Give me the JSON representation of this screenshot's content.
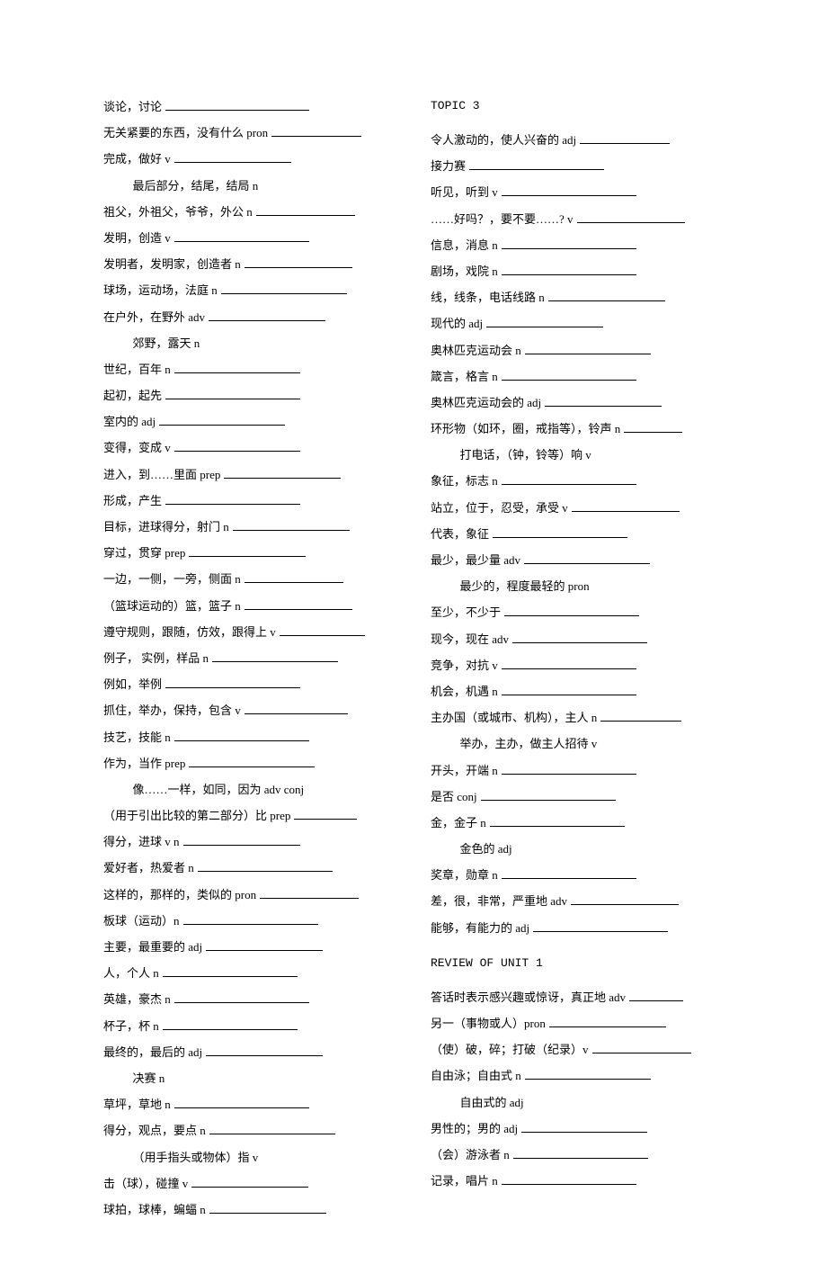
{
  "left": [
    {
      "text": "谈论，讨论",
      "blank": 160,
      "indent": false
    },
    {
      "text": "无关紧要的东西，没有什么 pron",
      "blank": 100,
      "indent": false
    },
    {
      "text": "完成，做好 v",
      "blank": 130,
      "indent": false
    },
    {
      "text": "最后部分，结尾，结局 n",
      "blank": 0,
      "indent": true
    },
    {
      "text": "祖父，外祖父，爷爷，外公 n",
      "blank": 110,
      "indent": false
    },
    {
      "text": "发明，创造 v",
      "blank": 150,
      "indent": false
    },
    {
      "text": "发明者，发明家，创造者 n",
      "blank": 120,
      "indent": false
    },
    {
      "text": "球场，运动场，法庭 n",
      "blank": 140,
      "indent": false
    },
    {
      "text": "在户外，在野外 adv",
      "blank": 130,
      "indent": false
    },
    {
      "text": "郊野，露天 n",
      "blank": 0,
      "indent": true
    },
    {
      "text": "世纪，百年 n",
      "blank": 140,
      "indent": false
    },
    {
      "text": "起初，起先",
      "blank": 150,
      "indent": false
    },
    {
      "text": "室内的 adj",
      "blank": 140,
      "indent": false
    },
    {
      "text": "变得，变成 v",
      "blank": 140,
      "indent": false
    },
    {
      "text": "进入，到……里面 prep",
      "blank": 130,
      "indent": false
    },
    {
      "text": "形成，产生",
      "blank": 150,
      "indent": false
    },
    {
      "text": "目标，进球得分，射门 n",
      "blank": 130,
      "indent": false
    },
    {
      "text": "穿过，贯穿 prep",
      "blank": 130,
      "indent": false
    },
    {
      "text": "一边，一侧，一旁，侧面 n",
      "blank": 110,
      "indent": false
    },
    {
      "text": "（篮球运动的）篮，篮子 n",
      "blank": 120,
      "indent": false
    },
    {
      "text": "遵守规则，跟随，仿效，跟得上 v",
      "blank": 95,
      "indent": false
    },
    {
      "text": "例子，  实例，样品 n",
      "blank": 140,
      "indent": false
    },
    {
      "text": "例如，举例",
      "blank": 150,
      "indent": false
    },
    {
      "text": "抓住，举办，保持，包含 v",
      "blank": 115,
      "indent": false
    },
    {
      "text": "技艺，技能 n",
      "blank": 150,
      "indent": false
    },
    {
      "text": "作为，当作 prep",
      "blank": 140,
      "indent": false
    },
    {
      "text": "像……一样，如同，因为 adv  conj",
      "blank": 0,
      "indent": true
    },
    {
      "text": "（用于引出比较的第二部分）比 prep",
      "blank": 70,
      "indent": false
    },
    {
      "text": "得分，进球 v  n",
      "blank": 130,
      "indent": false
    },
    {
      "text": "爱好者，热爱者 n",
      "blank": 150,
      "indent": false
    },
    {
      "text": "这样的，那样的，类似的 pron",
      "blank": 110,
      "indent": false
    },
    {
      "text": "板球（运动）n",
      "blank": 150,
      "indent": false
    },
    {
      "text": "主要，最重要的 adj",
      "blank": 130,
      "indent": false
    },
    {
      "text": "人，个人 n",
      "blank": 150,
      "indent": false
    },
    {
      "text": "英雄，豪杰 n",
      "blank": 150,
      "indent": false
    },
    {
      "text": "杯子，杯 n",
      "blank": 150,
      "indent": false
    },
    {
      "text": "最终的，最后的 adj",
      "blank": 130,
      "indent": false
    },
    {
      "text": "决赛 n",
      "blank": 0,
      "indent": true
    },
    {
      "text": "草坪，草地 n",
      "blank": 150,
      "indent": false
    },
    {
      "text": "得分，观点，要点 n",
      "blank": 140,
      "indent": false
    },
    {
      "text": "（用手指头或物体）指 v",
      "blank": 0,
      "indent": true
    },
    {
      "text": "击（球），碰撞 v",
      "blank": 130,
      "indent": false
    },
    {
      "text": "球拍，球棒，蝙蝠 n",
      "blank": 130,
      "indent": false
    }
  ],
  "right": [
    {
      "type": "heading",
      "text": "TOPIC 3"
    },
    {
      "type": "spacer"
    },
    {
      "text": "令人激动的，使人兴奋的 adj",
      "blank": 100,
      "indent": false
    },
    {
      "text": "接力赛",
      "blank": 150,
      "indent": false
    },
    {
      "text": "听见，听到 v",
      "blank": 150,
      "indent": false
    },
    {
      "text": "……好吗？，要不要……? v",
      "blank": 120,
      "indent": false
    },
    {
      "text": "信息，消息 n",
      "blank": 150,
      "indent": false
    },
    {
      "text": "剧场，戏院 n",
      "blank": 150,
      "indent": false
    },
    {
      "text": "线，线条，电话线路 n",
      "blank": 130,
      "indent": false
    },
    {
      "text": "现代的 adj",
      "blank": 130,
      "indent": false
    },
    {
      "text": "奥林匹克运动会 n",
      "blank": 140,
      "indent": false
    },
    {
      "text": "箴言，格言 n",
      "blank": 150,
      "indent": false
    },
    {
      "text": "奥林匹克运动会的 adj",
      "blank": 130,
      "indent": false
    },
    {
      "text": "环形物（如环，圈，戒指等），铃声 n",
      "blank": 65,
      "indent": false
    },
    {
      "text": "打电话，（钟，铃等）响 v",
      "blank": 0,
      "indent": true
    },
    {
      "text": "象征，标志 n",
      "blank": 150,
      "indent": false
    },
    {
      "text": "站立，位于，忍受，承受 v",
      "blank": 120,
      "indent": false
    },
    {
      "text": "代表，象征",
      "blank": 150,
      "indent": false
    },
    {
      "text": "最少，最少量 adv",
      "blank": 140,
      "indent": false
    },
    {
      "text": "最少的，程度最轻的 pron",
      "blank": 0,
      "indent": true
    },
    {
      "text": "至少，不少于",
      "blank": 150,
      "indent": false
    },
    {
      "text": "现今，现在 adv",
      "blank": 150,
      "indent": false
    },
    {
      "text": "竞争，对抗 v",
      "blank": 150,
      "indent": false
    },
    {
      "text": "机会，机遇 n",
      "blank": 150,
      "indent": false
    },
    {
      "text": "主办国（或城市、机构），主人 n",
      "blank": 90,
      "indent": false
    },
    {
      "text": "举办，主办，做主人招待 v",
      "blank": 0,
      "indent": true
    },
    {
      "text": "开头，开端 n",
      "blank": 150,
      "indent": false
    },
    {
      "text": "是否 conj",
      "blank": 150,
      "indent": false
    },
    {
      "text": "金，金子 n",
      "blank": 150,
      "indent": false
    },
    {
      "text": "金色的 adj",
      "blank": 0,
      "indent": true
    },
    {
      "text": "奖章，勋章 n",
      "blank": 150,
      "indent": false
    },
    {
      "text": "差，很，非常，严重地 adv",
      "blank": 120,
      "indent": false
    },
    {
      "text": "能够，有能力的 adj",
      "blank": 150,
      "indent": false
    },
    {
      "type": "spacer"
    },
    {
      "type": "heading",
      "text": "REVIEW OF UNIT 1"
    },
    {
      "type": "spacer"
    },
    {
      "text": "答话时表示感兴趣或惊讶，真正地 adv",
      "blank": 60,
      "indent": false
    },
    {
      "text": "另一（事物或人）pron",
      "blank": 130,
      "indent": false
    },
    {
      "text": "（使）破，碎；打破（纪录）v",
      "blank": 110,
      "indent": false
    },
    {
      "text": "自由泳；自由式 n",
      "blank": 140,
      "indent": false
    },
    {
      "text": "自由式的 adj",
      "blank": 0,
      "indent": true
    },
    {
      "text": "男性的；男的 adj",
      "blank": 140,
      "indent": false
    },
    {
      "text": "（会）游泳者 n",
      "blank": 150,
      "indent": false
    },
    {
      "text": "记录，唱片 n",
      "blank": 150,
      "indent": false
    }
  ]
}
